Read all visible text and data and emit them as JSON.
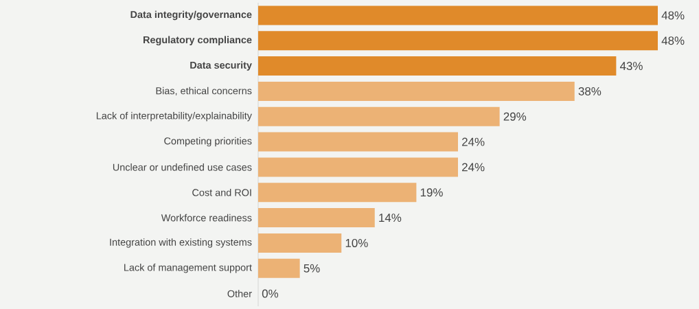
{
  "chart_data": {
    "type": "bar",
    "orientation": "horizontal",
    "categories": [
      "Data integrity/governance",
      "Regulatory compliance",
      "Data security",
      "Bias, ethical concerns",
      "Lack of interpretability/explainability",
      "Competing priorities",
      "Unclear or undefined use cases",
      "Cost and ROI",
      "Workforce readiness",
      "Integration with existing systems",
      "Lack of management support",
      "Other"
    ],
    "values": [
      48,
      48,
      43,
      38,
      29,
      24,
      24,
      19,
      14,
      10,
      5,
      0
    ],
    "colors": [
      "#e08a2a",
      "#e08a2a",
      "#e08a2a",
      "#ecb275",
      "#ecb275",
      "#ecb275",
      "#ecb275",
      "#ecb275",
      "#ecb275",
      "#ecb275",
      "#ecb275",
      "#ecb275"
    ],
    "value_labels": [
      "48%",
      "48%",
      "43%",
      "38%",
      "29%",
      "24%",
      "24%",
      "19%",
      "14%",
      "10%",
      "5%",
      "0%"
    ]
  }
}
